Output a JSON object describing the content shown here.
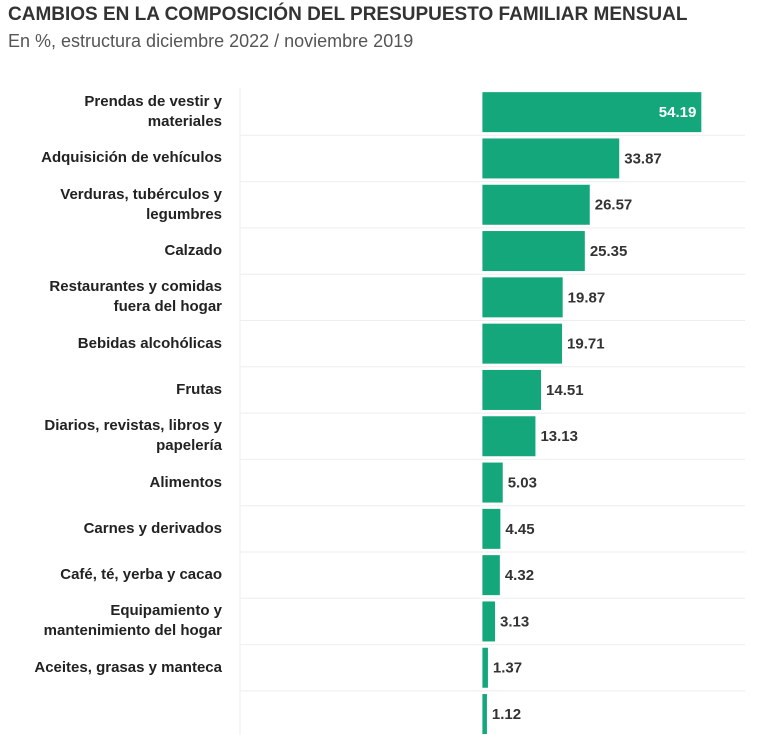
{
  "chart_data": {
    "type": "hbar",
    "title": "CAMBIOS EN LA COMPOSICIÓN DEL PRESUPUESTO FAMILIAR MENSUAL",
    "subtitle": "En %, estructura diciembre 2022 / noviembre 2019",
    "categories": [
      "Prendas de vestir y materiales",
      "Adquisición de vehículos",
      "Verduras, tubérculos y legumbres",
      "Calzado",
      "Restaurantes y comidas fuera del hogar",
      "Bebidas alcohólicas",
      "Frutas",
      "Diarios, revistas, libros y papelería",
      "Alimentos",
      "Carnes y derivados",
      "Café, té, yerba y cacao",
      "Equipamiento y mantenimiento del hogar",
      "Aceites, grasas y manteca",
      null
    ],
    "values": [
      54.19,
      33.87,
      26.57,
      25.35,
      19.87,
      19.71,
      14.51,
      13.13,
      5.03,
      4.45,
      4.32,
      3.13,
      1.37,
      1.12
    ],
    "color": "#14a77b",
    "xlim": [
      -60,
      65
    ]
  }
}
